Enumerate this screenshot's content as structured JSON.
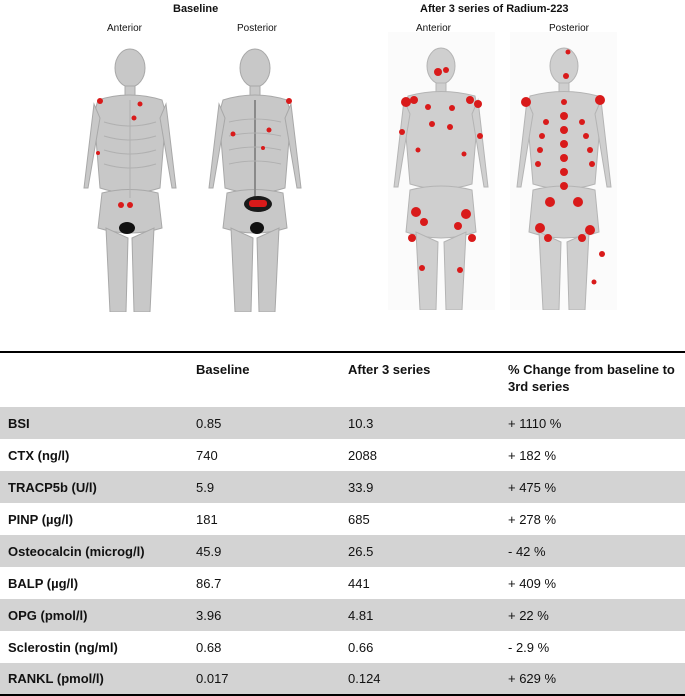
{
  "figure": {
    "baseline_title": "Baseline",
    "after_title": "After 3 series of Radium-223",
    "anterior_label": "Anterior",
    "posterior_label": "Posterior"
  },
  "table": {
    "headers": [
      "",
      "Baseline",
      "After 3 series",
      "% Change from baseline to 3rd series"
    ],
    "rows": [
      {
        "param": "BSI",
        "baseline": "0.85",
        "after": "10.3",
        "change": "+ 1110 %"
      },
      {
        "param": "CTX (ng/l)",
        "baseline": "740",
        "after": "2088",
        "change": "+ 182 %"
      },
      {
        "param": "TRACP5b (U/l)",
        "baseline": "5.9",
        "after": "33.9",
        "change": "+ 475 %"
      },
      {
        "param": "PINP (µg/l)",
        "baseline": "181",
        "after": "685",
        "change": "+ 278 %"
      },
      {
        "param": "Osteocalcin (microg/l)",
        "baseline": "45.9",
        "after": "26.5",
        "change": "- 42 %"
      },
      {
        "param": "BALP (µg/l)",
        "baseline": "86.7",
        "after": "441",
        "change": "+ 409 %"
      },
      {
        "param": "OPG (pmol/l)",
        "baseline": "3.96",
        "after": "4.81",
        "change": "+ 22 %"
      },
      {
        "param": "Sclerostin (ng/ml)",
        "baseline": "0.68",
        "after": "0.66",
        "change": "- 2.9 %"
      },
      {
        "param": "RANKL (pmol/l)",
        "baseline": "0.017",
        "after": "0.124",
        "change": "+ 629 %"
      }
    ]
  },
  "colors": {
    "hotspot": "#d91a1a",
    "shade_row": "#d3d3d3",
    "body_gray": "#9a9a9a"
  }
}
